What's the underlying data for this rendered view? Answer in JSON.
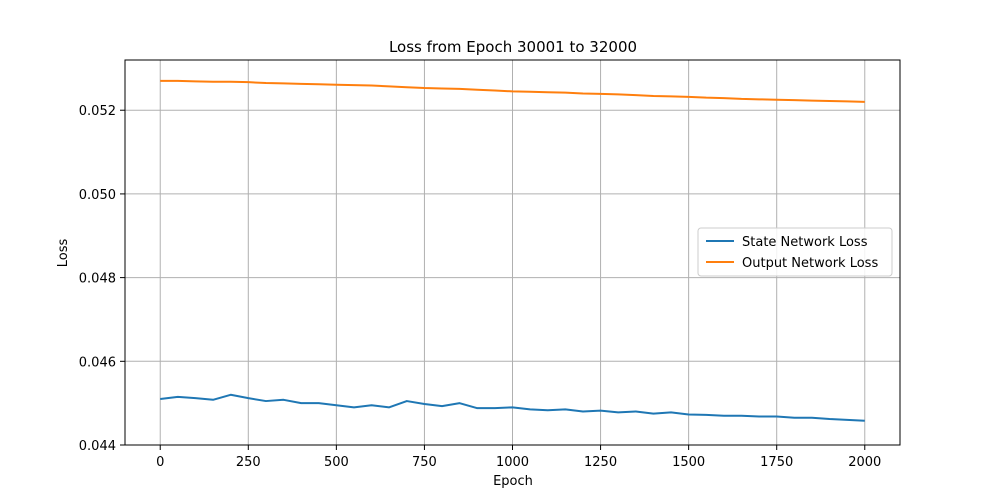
{
  "chart_data": {
    "type": "line",
    "title": "Loss from Epoch 30001 to 32000",
    "xlabel": "Epoch",
    "ylabel": "Loss",
    "xlim": [
      -100,
      2100
    ],
    "ylim": [
      0.044,
      0.0532
    ],
    "grid": true,
    "legend_position": "center-right",
    "x_ticks": [
      0,
      250,
      500,
      750,
      1000,
      1250,
      1500,
      1750,
      2000
    ],
    "x_tick_labels": [
      "0",
      "250",
      "500",
      "750",
      "1000",
      "1250",
      "1500",
      "1750",
      "2000"
    ],
    "y_ticks": [
      0.044,
      0.046,
      0.048,
      0.05,
      0.052
    ],
    "y_tick_labels": [
      "0.044",
      "0.046",
      "0.048",
      "0.050",
      "0.052"
    ],
    "series": [
      {
        "name": "State Network Loss",
        "color": "#1f77b4",
        "x": [
          0,
          50,
          100,
          150,
          200,
          250,
          300,
          350,
          400,
          450,
          500,
          550,
          600,
          650,
          700,
          750,
          800,
          850,
          900,
          950,
          1000,
          1050,
          1100,
          1150,
          1200,
          1250,
          1300,
          1350,
          1400,
          1450,
          1500,
          1550,
          1600,
          1650,
          1700,
          1750,
          1800,
          1850,
          1900,
          1950,
          2000
        ],
        "values": [
          0.0451,
          0.04515,
          0.04512,
          0.04508,
          0.0452,
          0.04512,
          0.04505,
          0.04508,
          0.045,
          0.045,
          0.04495,
          0.0449,
          0.04495,
          0.0449,
          0.04505,
          0.04498,
          0.04493,
          0.045,
          0.04488,
          0.04488,
          0.0449,
          0.04485,
          0.04483,
          0.04485,
          0.0448,
          0.04482,
          0.04478,
          0.0448,
          0.04475,
          0.04478,
          0.04473,
          0.04472,
          0.0447,
          0.0447,
          0.04468,
          0.04468,
          0.04465,
          0.04465,
          0.04462,
          0.0446,
          0.04458
        ]
      },
      {
        "name": "Output Network Loss",
        "color": "#ff7f0e",
        "x": [
          0,
          50,
          100,
          150,
          200,
          250,
          300,
          350,
          400,
          450,
          500,
          550,
          600,
          650,
          700,
          750,
          800,
          850,
          900,
          950,
          1000,
          1050,
          1100,
          1150,
          1200,
          1250,
          1300,
          1350,
          1400,
          1450,
          1500,
          1550,
          1600,
          1650,
          1700,
          1750,
          1800,
          1850,
          1900,
          1950,
          2000
        ],
        "values": [
          0.0527,
          0.0527,
          0.05269,
          0.05268,
          0.05268,
          0.05267,
          0.05265,
          0.05264,
          0.05263,
          0.05262,
          0.05261,
          0.0526,
          0.05259,
          0.05257,
          0.05255,
          0.05253,
          0.05252,
          0.05251,
          0.05249,
          0.05247,
          0.05245,
          0.05244,
          0.05243,
          0.05242,
          0.0524,
          0.05239,
          0.05238,
          0.05236,
          0.05234,
          0.05233,
          0.05232,
          0.0523,
          0.05229,
          0.05227,
          0.05226,
          0.05225,
          0.05224,
          0.05223,
          0.05222,
          0.05221,
          0.0522
        ]
      }
    ]
  }
}
